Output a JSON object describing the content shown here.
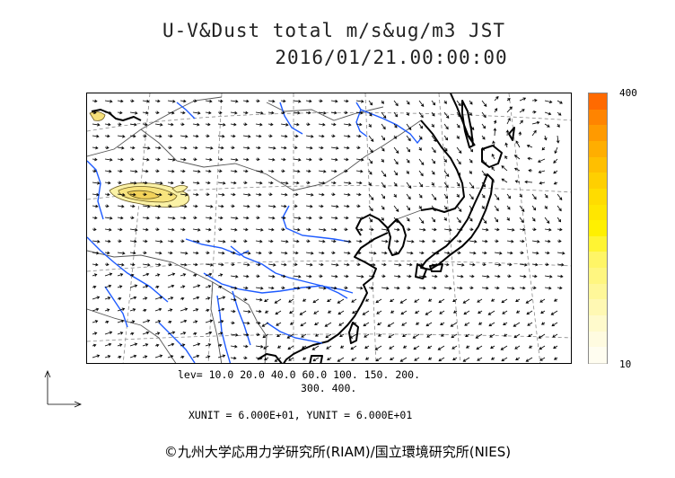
{
  "header": {
    "title": "U-V&Dust total m/s&ug/m3 JST",
    "datetime": "2016/01/21.00:00:00"
  },
  "colorbar": {
    "max_label": "400",
    "min_label": "10",
    "colors": [
      "#ff6a00",
      "#ff8400",
      "#ff9a00",
      "#ffae00",
      "#ffbf00",
      "#ffcf00",
      "#ffdc00",
      "#ffe600",
      "#fff000",
      "#fff433",
      "#fff566",
      "#fff680",
      "#fff799",
      "#fff8b3",
      "#fffacc",
      "#fffbe0",
      "#fffdf0"
    ]
  },
  "legend": {
    "levels_line1": "lev= 10.0 20.0 40.0 60.0 100. 150. 200.",
    "levels_line2": "300. 400.",
    "units": "XUNIT = 6.000E+01, YUNIT = 6.000E+01"
  },
  "footer": {
    "copyright": "©九州大学応用力学研究所(RIAM)/国立環境研究所(NIES)"
  },
  "map_colors": {
    "coast": "#000000",
    "river": "#1e5bff",
    "border": "#555555",
    "grid": "#888888",
    "vector": "#000000",
    "dust_fill": "#fbf2a6",
    "dust_core": "#f5d760"
  }
}
